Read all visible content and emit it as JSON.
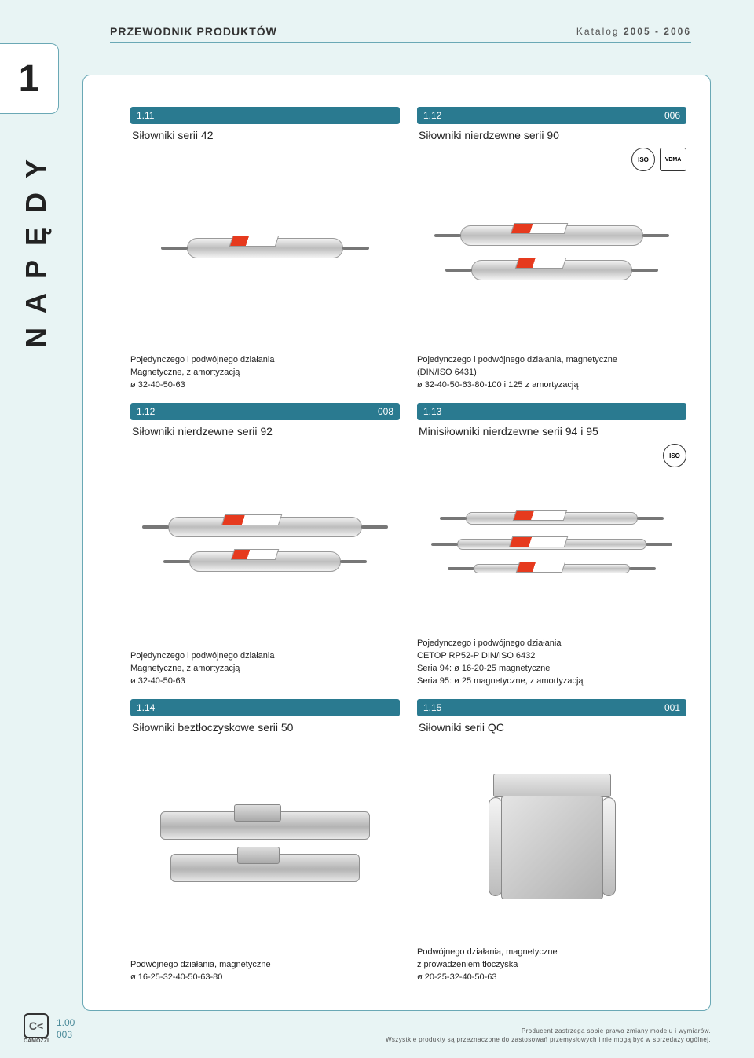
{
  "colors": {
    "page_bg": "#e8f4f4",
    "panel_border": "#6aa8b5",
    "bar_bg": "#2a7a90",
    "bar_text": "#ffffff",
    "text": "#222222",
    "muted": "#555555",
    "accent_code": "#4a8a99",
    "cyl_light": "#f2f2f2",
    "cyl_dark": "#bdbdbd",
    "tag_red": "#e63a1e"
  },
  "header": {
    "title": "PRZEWODNIK PRODUKTÓW",
    "right_label": "Katalog",
    "right_value": "2005 - 2006"
  },
  "corner_tab": "1",
  "side_label": "NAPĘDY",
  "cards": [
    {
      "code": "1.11",
      "page": "",
      "title": "Siłowniki serii 42",
      "badges": [],
      "image": {
        "type": "single_cylinder",
        "cylinders": [
          {
            "width_pct": 58
          }
        ]
      },
      "desc": "Pojedynczego i podwójnego działania\nMagnetyczne, z amortyzacją\nø 32-40-50-63"
    },
    {
      "code": "1.12",
      "page": "006",
      "title": "Siłowniki nierdzewne serii 90",
      "badges": [
        "ISO",
        "VDMA"
      ],
      "image": {
        "type": "two_cylinders",
        "cylinders": [
          {
            "width_pct": 68
          },
          {
            "width_pct": 60
          }
        ]
      },
      "desc": "Pojedynczego i podwójnego działania, magnetyczne\n(DIN/ISO 6431)\nø 32-40-50-63-80-100 i 125 z amortyzacją"
    },
    {
      "code": "1.12",
      "page": "008",
      "title": "Siłowniki nierdzewne serii 92",
      "badges": [],
      "image": {
        "type": "two_cylinders",
        "cylinders": [
          {
            "width_pct": 72
          },
          {
            "width_pct": 56
          }
        ]
      },
      "desc": "Pojedynczego i podwójnego działania\nMagnetyczne, z amortyzacją\nø 32-40-50-63"
    },
    {
      "code": "1.13",
      "page": "",
      "title": "Minisiłowniki nierdzewne serii 94 i 95",
      "badges": [
        "ISO"
      ],
      "image": {
        "type": "mini_cylinders",
        "cylinders": [
          {
            "width_pct": 64,
            "h": 16
          },
          {
            "width_pct": 70,
            "h": 14
          },
          {
            "width_pct": 58,
            "h": 12
          }
        ]
      },
      "desc": "Pojedynczego i podwójnego działania\nCETOP RP52-P DIN/ISO 6432\nSeria 94: ø 16-20-25 magnetyczne\nSeria 95: ø 25 magnetyczne, z amortyzacją"
    },
    {
      "code": "1.14",
      "page": "",
      "title": "Siłowniki beztłoczyskowe serii 50",
      "badges": [],
      "image": {
        "type": "rodless",
        "items": [
          {
            "width_pct": 78
          },
          {
            "width_pct": 70
          }
        ]
      },
      "desc": "Podwójnego działania, magnetyczne\nø 16-25-32-40-50-63-80"
    },
    {
      "code": "1.15",
      "page": "001",
      "title": "Siłowniki serii QC",
      "badges": [],
      "image": {
        "type": "qc_block"
      },
      "desc": "Podwójnego działania, magnetyczne\nz prowadzeniem tłoczyska\nø 20-25-32-40-50-63"
    }
  ],
  "footer": {
    "logo_text": "C<",
    "logo_sub": "CAMOZZI",
    "section_code": "1.00",
    "page_num": "003",
    "disclaimer_line1": "Producent zastrzega sobie prawo zmiany modelu i wymiarów.",
    "disclaimer_line2": "Wszystkie produkty są przeznaczone do zastosowań przemysłowych i nie mogą być w sprzedaży ogólnej."
  },
  "typography": {
    "header_title_pt": 14,
    "header_right_pt": 12,
    "corner_num_pt": 48,
    "side_label_pt": 36,
    "card_code_pt": 12,
    "card_title_pt": 14,
    "card_desc_pt": 11,
    "footer_pt": 8
  }
}
